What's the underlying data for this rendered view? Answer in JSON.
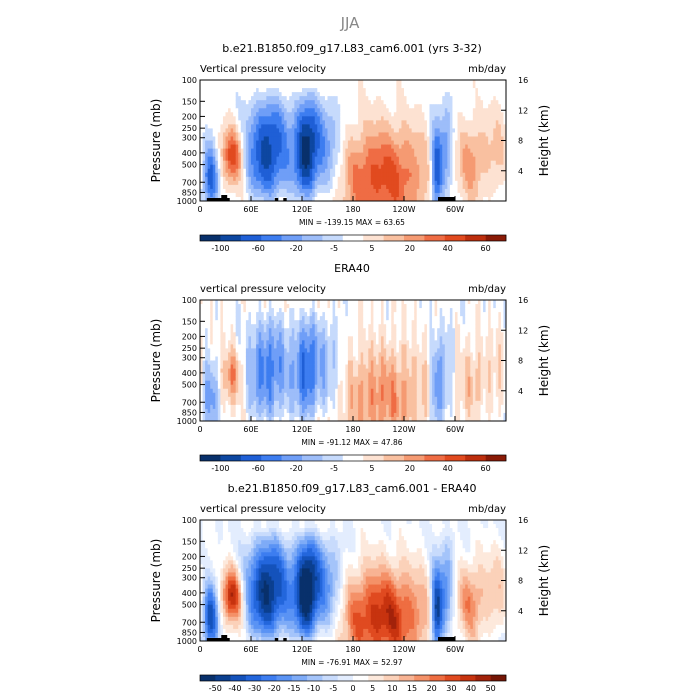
{
  "figure": {
    "season": "JJA"
  },
  "colorscales": {
    "full": {
      "colors": [
        "#08306b",
        "#0d47a1",
        "#1f5fd6",
        "#3d7df0",
        "#6f9ef7",
        "#9dbdf9",
        "#c6dafc",
        "#ffffff",
        "#fde2d2",
        "#f9c0a0",
        "#f59a72",
        "#ef6c44",
        "#e14a1f",
        "#bd2e0d",
        "#8a1a06"
      ],
      "tick_labels": [
        "-100",
        "-60",
        "-20",
        "-5",
        "5",
        "20",
        "40",
        "60"
      ]
    },
    "diff": {
      "colors": [
        "#08306b",
        "#0b3f8f",
        "#1452bb",
        "#2366dc",
        "#3d7df0",
        "#5a93f4",
        "#7eabf7",
        "#a4c4fa",
        "#c8dbfc",
        "#e3edfe",
        "#ffffff",
        "#fde9dc",
        "#fbd1b9",
        "#f8b393",
        "#f49168",
        "#ee6d41",
        "#e04a20",
        "#c7330f",
        "#a2220a",
        "#741505"
      ],
      "tick_labels": [
        "-50",
        "-40",
        "-30",
        "-20",
        "-15",
        "-10",
        "-5",
        "0",
        "5",
        "10",
        "15",
        "20",
        "30",
        "40",
        "50"
      ]
    }
  },
  "chart_data": [
    {
      "type": "heatmap",
      "panel": "model",
      "title": "b.e21.B1850.f09_g17.L83_cam6.001 (yrs 3-32)",
      "left_string": "Vertical pressure velocity",
      "right_string": "mb/day",
      "ylabel": "Pressure (mb)",
      "ylabel_right": "Height (km)",
      "x_ticks": [
        {
          "lon": 0,
          "label": "0"
        },
        {
          "lon": 60,
          "label": "60E"
        },
        {
          "lon": 120,
          "label": "120E"
        },
        {
          "lon": 180,
          "label": "180"
        },
        {
          "lon": 240,
          "label": "120W"
        },
        {
          "lon": 300,
          "label": "60W"
        }
      ],
      "y_ticks": [
        "100",
        "150",
        "200",
        "250",
        "300",
        "400",
        "500",
        "700",
        "850",
        "1000"
      ],
      "height_ticks": [
        "4",
        "8",
        "12",
        "16"
      ],
      "xlim": [
        0,
        360
      ],
      "ylim_mb": [
        1000,
        100
      ],
      "min_max": "MIN = -139.15   MAX =  63.65",
      "colorscale": "full",
      "amplitude": 1.0,
      "topography": true
    },
    {
      "type": "heatmap",
      "panel": "obs",
      "title": "ERA40",
      "left_string": "vertical pressure velocity",
      "right_string": "mb/day",
      "ylabel": "Pressure (mb)",
      "ylabel_right": "Height (km)",
      "x_ticks": [
        {
          "lon": 0,
          "label": "0"
        },
        {
          "lon": 60,
          "label": "60E"
        },
        {
          "lon": 120,
          "label": "120E"
        },
        {
          "lon": 180,
          "label": "180"
        },
        {
          "lon": 240,
          "label": "120W"
        },
        {
          "lon": 300,
          "label": "60W"
        }
      ],
      "y_ticks": [
        "100",
        "150",
        "200",
        "250",
        "300",
        "400",
        "500",
        "700",
        "850",
        "1000"
      ],
      "height_ticks": [
        "4",
        "8",
        "12",
        "16"
      ],
      "xlim": [
        0,
        360
      ],
      "ylim_mb": [
        1000,
        100
      ],
      "min_max": "MIN = -91.12   MAX =  47.86",
      "colorscale": "full",
      "amplitude": 0.65,
      "topography": false
    },
    {
      "type": "heatmap",
      "panel": "diff",
      "title": "b.e21.B1850.f09_g17.L83_cam6.001 - ERA40",
      "left_string": "vertical pressure velocity",
      "right_string": "mb/day",
      "ylabel": "Pressure (mb)",
      "ylabel_right": "Height (km)",
      "x_ticks": [
        {
          "lon": 0,
          "label": "0"
        },
        {
          "lon": 60,
          "label": "60E"
        },
        {
          "lon": 120,
          "label": "120E"
        },
        {
          "lon": 180,
          "label": "180"
        },
        {
          "lon": 240,
          "label": "120W"
        },
        {
          "lon": 300,
          "label": "60W"
        }
      ],
      "y_ticks": [
        "100",
        "150",
        "200",
        "250",
        "300",
        "400",
        "500",
        "700",
        "850",
        "1000"
      ],
      "height_ticks": [
        "4",
        "8",
        "12",
        "16"
      ],
      "xlim": [
        0,
        360
      ],
      "ylim_mb": [
        1000,
        100
      ],
      "min_max": "MIN = -76.91   MAX =  52.97",
      "colorscale": "diff",
      "amplitude": 1.0,
      "topography": true
    }
  ]
}
